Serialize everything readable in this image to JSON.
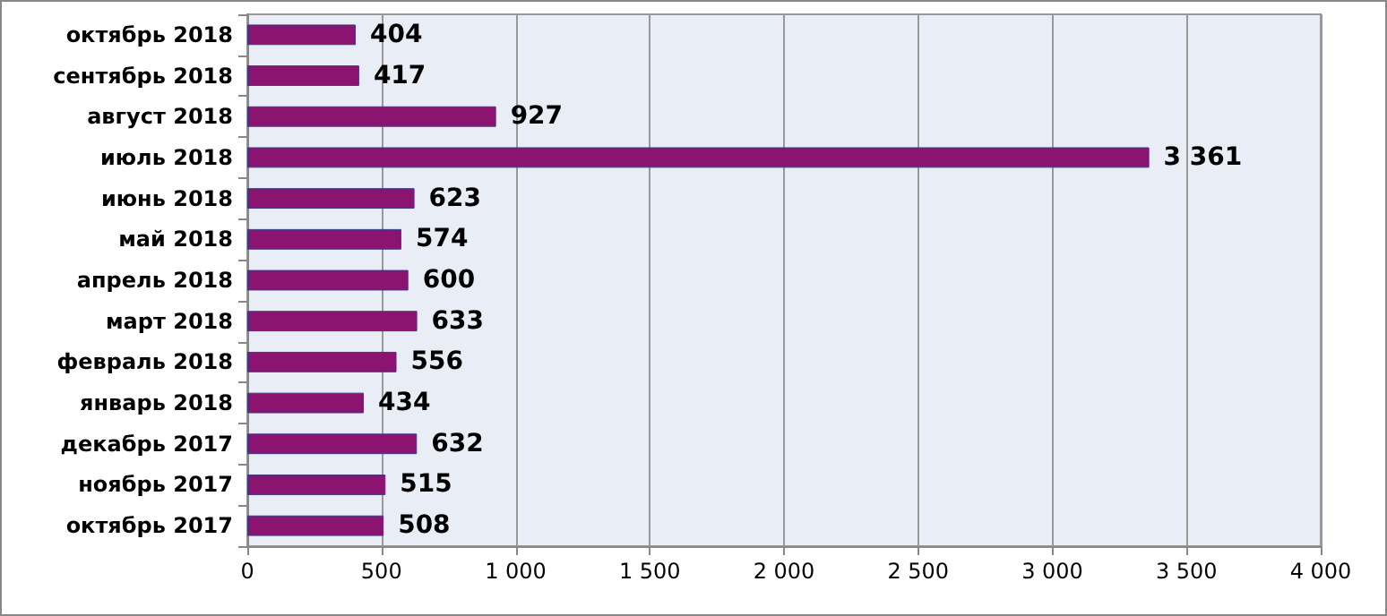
{
  "chart_data": {
    "type": "bar",
    "orientation": "horizontal",
    "categories": [
      "октябрь 2018",
      "сентябрь 2018",
      "август 2018",
      "июль 2018",
      "июнь 2018",
      "май 2018",
      "апрель 2018",
      "март 2018",
      "февраль 2018",
      "январь 2018",
      "декабрь 2017",
      "ноябрь 2017",
      "октябрь 2017"
    ],
    "series": [
      {
        "color": "#8a1470",
        "values": [
          404,
          417,
          927,
          3361,
          623,
          574,
          600,
          633,
          556,
          434,
          632,
          515,
          508
        ],
        "value_labels": [
          "404",
          "417",
          "927",
          "3 361",
          "623",
          "574",
          "600",
          "633",
          "556",
          "434",
          "632",
          "515",
          "508"
        ]
      }
    ],
    "xlim": [
      0,
      4000
    ],
    "xticks": [
      0,
      500,
      {
        "value": 1000,
        "label": "1 000"
      },
      {
        "value": 1500,
        "label": "1 500"
      },
      {
        "value": 2000,
        "label": "2 000"
      },
      {
        "value": 2500,
        "label": "2 500"
      },
      {
        "value": 3000,
        "label": "3 000"
      },
      {
        "value": 3500,
        "label": "3 500"
      },
      {
        "value": 4000,
        "label": "4 000"
      }
    ],
    "grid": "x"
  }
}
